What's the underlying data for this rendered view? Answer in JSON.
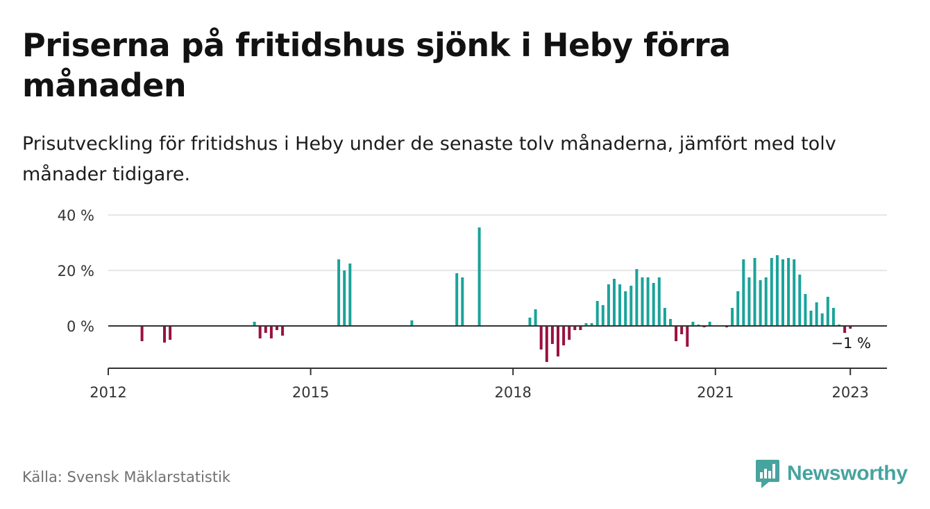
{
  "title": "Priserna på fritidshus sjönk i Heby förra månaden",
  "subtitle": "Prisutveckling för fritidshus i Heby under de senaste tolv månaderna, jämfört med tolv månader tidigare.",
  "source": "Källa: Svensk Mäklarstatistik",
  "brand": "Newsworthy",
  "colors": {
    "positive": "#1aa39a",
    "negative": "#99123f",
    "brand": "#47a39e"
  },
  "chart_data": {
    "type": "bar",
    "x_start": "2012-01",
    "x_end": "2023-02",
    "ylim": [
      -13,
      40
    ],
    "y_ticks": [
      {
        "value": 40,
        "label": "40 %"
      },
      {
        "value": 20,
        "label": "20 %"
      },
      {
        "value": 0,
        "label": "0 %"
      }
    ],
    "x_ticks": [
      {
        "date": "2012-01",
        "label": "2012"
      },
      {
        "date": "2015-01",
        "label": "2015"
      },
      {
        "date": "2018-01",
        "label": "2018"
      },
      {
        "date": "2021-01",
        "label": "2021"
      },
      {
        "date": "2023-01",
        "label": "2023"
      }
    ],
    "last_label": "−1 %",
    "grid": true,
    "points": [
      {
        "date": "2012-07",
        "value": -5.5
      },
      {
        "date": "2012-11",
        "value": -6
      },
      {
        "date": "2012-12",
        "value": -5
      },
      {
        "date": "2014-03",
        "value": 1.5
      },
      {
        "date": "2014-04",
        "value": -4.5
      },
      {
        "date": "2014-05",
        "value": -2.5
      },
      {
        "date": "2014-06",
        "value": -4.5
      },
      {
        "date": "2014-07",
        "value": -1.5
      },
      {
        "date": "2014-08",
        "value": -3.5
      },
      {
        "date": "2015-06",
        "value": 24
      },
      {
        "date": "2015-07",
        "value": 20
      },
      {
        "date": "2015-08",
        "value": 22.5
      },
      {
        "date": "2016-07",
        "value": 2
      },
      {
        "date": "2017-03",
        "value": 19
      },
      {
        "date": "2017-04",
        "value": 17.5
      },
      {
        "date": "2017-07",
        "value": 35.5
      },
      {
        "date": "2018-04",
        "value": 3
      },
      {
        "date": "2018-05",
        "value": 6
      },
      {
        "date": "2018-06",
        "value": -8.5
      },
      {
        "date": "2018-07",
        "value": -13
      },
      {
        "date": "2018-08",
        "value": -6.5
      },
      {
        "date": "2018-09",
        "value": -11
      },
      {
        "date": "2018-10",
        "value": -7
      },
      {
        "date": "2018-11",
        "value": -5
      },
      {
        "date": "2018-12",
        "value": -1.5
      },
      {
        "date": "2019-01",
        "value": -1.5
      },
      {
        "date": "2019-02",
        "value": 1
      },
      {
        "date": "2019-03",
        "value": 1
      },
      {
        "date": "2019-04",
        "value": 9
      },
      {
        "date": "2019-05",
        "value": 7.5
      },
      {
        "date": "2019-06",
        "value": 15
      },
      {
        "date": "2019-07",
        "value": 17
      },
      {
        "date": "2019-08",
        "value": 15
      },
      {
        "date": "2019-09",
        "value": 12.5
      },
      {
        "date": "2019-10",
        "value": 14.5
      },
      {
        "date": "2019-11",
        "value": 20.5
      },
      {
        "date": "2019-12",
        "value": 17.5
      },
      {
        "date": "2020-01",
        "value": 17.5
      },
      {
        "date": "2020-02",
        "value": 15.5
      },
      {
        "date": "2020-03",
        "value": 17.5
      },
      {
        "date": "2020-04",
        "value": 6.5
      },
      {
        "date": "2020-05",
        "value": 2.5
      },
      {
        "date": "2020-06",
        "value": -5.5
      },
      {
        "date": "2020-07",
        "value": -3
      },
      {
        "date": "2020-08",
        "value": -7.5
      },
      {
        "date": "2020-09",
        "value": 1.5
      },
      {
        "date": "2020-10",
        "value": 0.5
      },
      {
        "date": "2020-11",
        "value": -0.5
      },
      {
        "date": "2020-12",
        "value": 1.5
      },
      {
        "date": "2021-03",
        "value": -0.5
      },
      {
        "date": "2021-04",
        "value": 6.5
      },
      {
        "date": "2021-05",
        "value": 12.5
      },
      {
        "date": "2021-06",
        "value": 24
      },
      {
        "date": "2021-07",
        "value": 17.5
      },
      {
        "date": "2021-08",
        "value": 24.5
      },
      {
        "date": "2021-09",
        "value": 16.5
      },
      {
        "date": "2021-10",
        "value": 17.5
      },
      {
        "date": "2021-11",
        "value": 24.5
      },
      {
        "date": "2021-12",
        "value": 25.5
      },
      {
        "date": "2022-01",
        "value": 24
      },
      {
        "date": "2022-02",
        "value": 24.5
      },
      {
        "date": "2022-03",
        "value": 24
      },
      {
        "date": "2022-04",
        "value": 18.5
      },
      {
        "date": "2022-05",
        "value": 11.5
      },
      {
        "date": "2022-06",
        "value": 5.5
      },
      {
        "date": "2022-07",
        "value": 8.5
      },
      {
        "date": "2022-08",
        "value": 4.5
      },
      {
        "date": "2022-09",
        "value": 10.5
      },
      {
        "date": "2022-10",
        "value": 6.5
      },
      {
        "date": "2022-11",
        "value": 0.5
      },
      {
        "date": "2022-12",
        "value": -2.5
      },
      {
        "date": "2023-01",
        "value": -1
      }
    ]
  }
}
